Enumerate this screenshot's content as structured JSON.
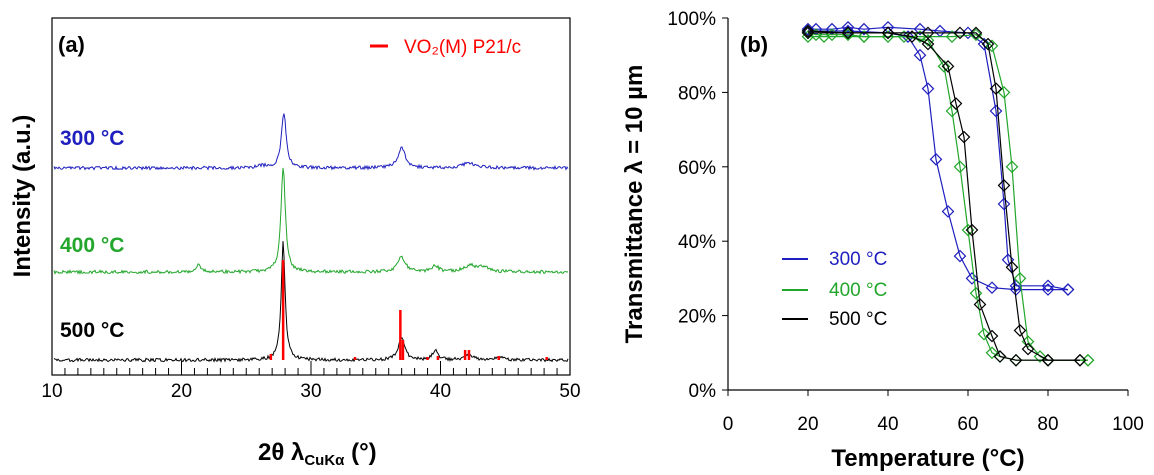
{
  "chart_data": [
    {
      "type": "line",
      "panel": "(a)",
      "xlabel_main": "2θ λ",
      "xlabel_sub": "CuKα",
      "xlabel_tail": " (°)",
      "ylabel": "Intensity (a.u.)",
      "xlim": [
        10,
        50
      ],
      "xticks": [
        10,
        20,
        30,
        40,
        50
      ],
      "reference_legend": "VO₂(M) P21/c",
      "series": [
        {
          "name": "300 °C",
          "color": "#1f1fbf",
          "baseline": 168,
          "peaks": [
            [
              27.9,
              56,
              0.22
            ],
            [
              37.0,
              20,
              0.35
            ],
            [
              42.2,
              5,
              0.6
            ],
            [
              26.2,
              2,
              0.5
            ]
          ]
        },
        {
          "name": "400 °C",
          "color": "#22a62b",
          "baseline": 272,
          "peaks": [
            [
              27.85,
              106,
              0.2
            ],
            [
              21.3,
              7,
              0.25
            ],
            [
              37.0,
              15,
              0.35
            ],
            [
              39.6,
              6,
              0.3
            ],
            [
              42.3,
              6,
              0.6
            ],
            [
              43.3,
              4,
              0.5
            ]
          ]
        },
        {
          "name": "500 °C",
          "color": "#000000",
          "baseline": 360,
          "peaks": [
            [
              27.85,
              118,
              0.18
            ],
            [
              37.0,
              22,
              0.3
            ],
            [
              39.6,
              10,
              0.25
            ],
            [
              42.2,
              5,
              0.4
            ],
            [
              44.5,
              3,
              0.4
            ]
          ]
        }
      ],
      "reference_lines": [
        {
          "x": 26.9,
          "h": 6
        },
        {
          "x": 27.85,
          "h": 100
        },
        {
          "x": 33.4,
          "h": 3
        },
        {
          "x": 36.9,
          "h": 50
        },
        {
          "x": 37.1,
          "h": 20
        },
        {
          "x": 39.0,
          "h": 3
        },
        {
          "x": 39.8,
          "h": 4
        },
        {
          "x": 41.9,
          "h": 10
        },
        {
          "x": 42.2,
          "h": 10
        },
        {
          "x": 44.5,
          "h": 4
        },
        {
          "x": 48.2,
          "h": 3
        }
      ]
    },
    {
      "type": "line",
      "panel": "(b)",
      "xlabel": "Temperature (°C)",
      "ylabel": "Transmittance λ = 10 µm",
      "xlim": [
        0,
        100
      ],
      "ylim": [
        0,
        100
      ],
      "xticks": [
        0,
        20,
        40,
        60,
        80,
        100
      ],
      "yticks": [
        0,
        20,
        40,
        60,
        80,
        100
      ],
      "ytick_suffix": "%",
      "series": [
        {
          "name": "300 °C",
          "color": "#1f1fbf",
          "heating": [
            [
              20,
              97
            ],
            [
              22,
              97
            ],
            [
              26,
              97
            ],
            [
              30,
              97.5
            ],
            [
              34,
              97
            ],
            [
              40,
              97.5
            ],
            [
              48,
              97
            ],
            [
              53,
              96.5
            ],
            [
              60,
              96
            ],
            [
              64,
              93
            ],
            [
              67,
              75
            ],
            [
              69,
              50
            ],
            [
              70,
              35
            ],
            [
              72,
              28
            ],
            [
              80,
              28
            ],
            [
              85,
              27
            ]
          ],
          "cooling": [
            [
              85,
              27
            ],
            [
              80,
              27
            ],
            [
              72,
              27
            ],
            [
              66,
              27.5
            ],
            [
              61,
              30
            ],
            [
              58,
              36
            ],
            [
              55,
              48
            ],
            [
              52,
              62
            ],
            [
              50,
              81
            ],
            [
              48,
              90
            ],
            [
              45,
              95
            ],
            [
              40,
              96
            ],
            [
              30,
              96.5
            ],
            [
              20,
              96.5
            ]
          ]
        },
        {
          "name": "400 °C",
          "color": "#22a62b",
          "heating": [
            [
              20,
              96
            ],
            [
              22,
              95.5
            ],
            [
              26,
              95.5
            ],
            [
              30,
              95.5
            ],
            [
              34,
              95
            ],
            [
              40,
              95
            ],
            [
              48,
              95
            ],
            [
              56,
              95
            ],
            [
              62,
              95.5
            ],
            [
              66,
              92.5
            ],
            [
              69,
              80
            ],
            [
              71,
              60
            ],
            [
              73,
              30
            ],
            [
              75,
              13
            ],
            [
              78,
              9
            ],
            [
              80,
              8
            ],
            [
              90,
              8
            ]
          ],
          "cooling": [
            [
              90,
              8
            ],
            [
              80,
              8
            ],
            [
              72,
              8
            ],
            [
              68,
              9
            ],
            [
              66,
              10
            ],
            [
              64,
              15
            ],
            [
              62,
              26
            ],
            [
              60,
              43
            ],
            [
              58,
              60
            ],
            [
              56,
              75
            ],
            [
              54,
              87
            ],
            [
              50,
              94
            ],
            [
              44,
              95
            ],
            [
              34,
              95
            ],
            [
              24,
              95
            ],
            [
              20,
              95
            ]
          ]
        },
        {
          "name": "500 °C",
          "color": "#000000",
          "heating": [
            [
              20,
              96.5
            ],
            [
              30,
              96
            ],
            [
              40,
              96
            ],
            [
              50,
              96
            ],
            [
              58,
              96
            ],
            [
              62,
              96
            ],
            [
              65,
              93
            ],
            [
              67,
              81
            ],
            [
              69,
              55
            ],
            [
              71,
              33
            ],
            [
              73,
              16
            ],
            [
              75,
              11
            ],
            [
              80,
              8
            ],
            [
              88,
              8
            ]
          ],
          "cooling": [
            [
              88,
              8
            ],
            [
              80,
              8
            ],
            [
              72,
              8
            ],
            [
              68,
              9
            ],
            [
              66,
              14.5
            ],
            [
              63,
              23
            ],
            [
              61,
              43
            ],
            [
              59,
              68
            ],
            [
              57,
              77
            ],
            [
              55,
              87
            ],
            [
              50,
              93
            ],
            [
              46,
              95
            ],
            [
              40,
              96
            ],
            [
              30,
              96
            ],
            [
              20,
              96
            ]
          ]
        }
      ]
    }
  ]
}
